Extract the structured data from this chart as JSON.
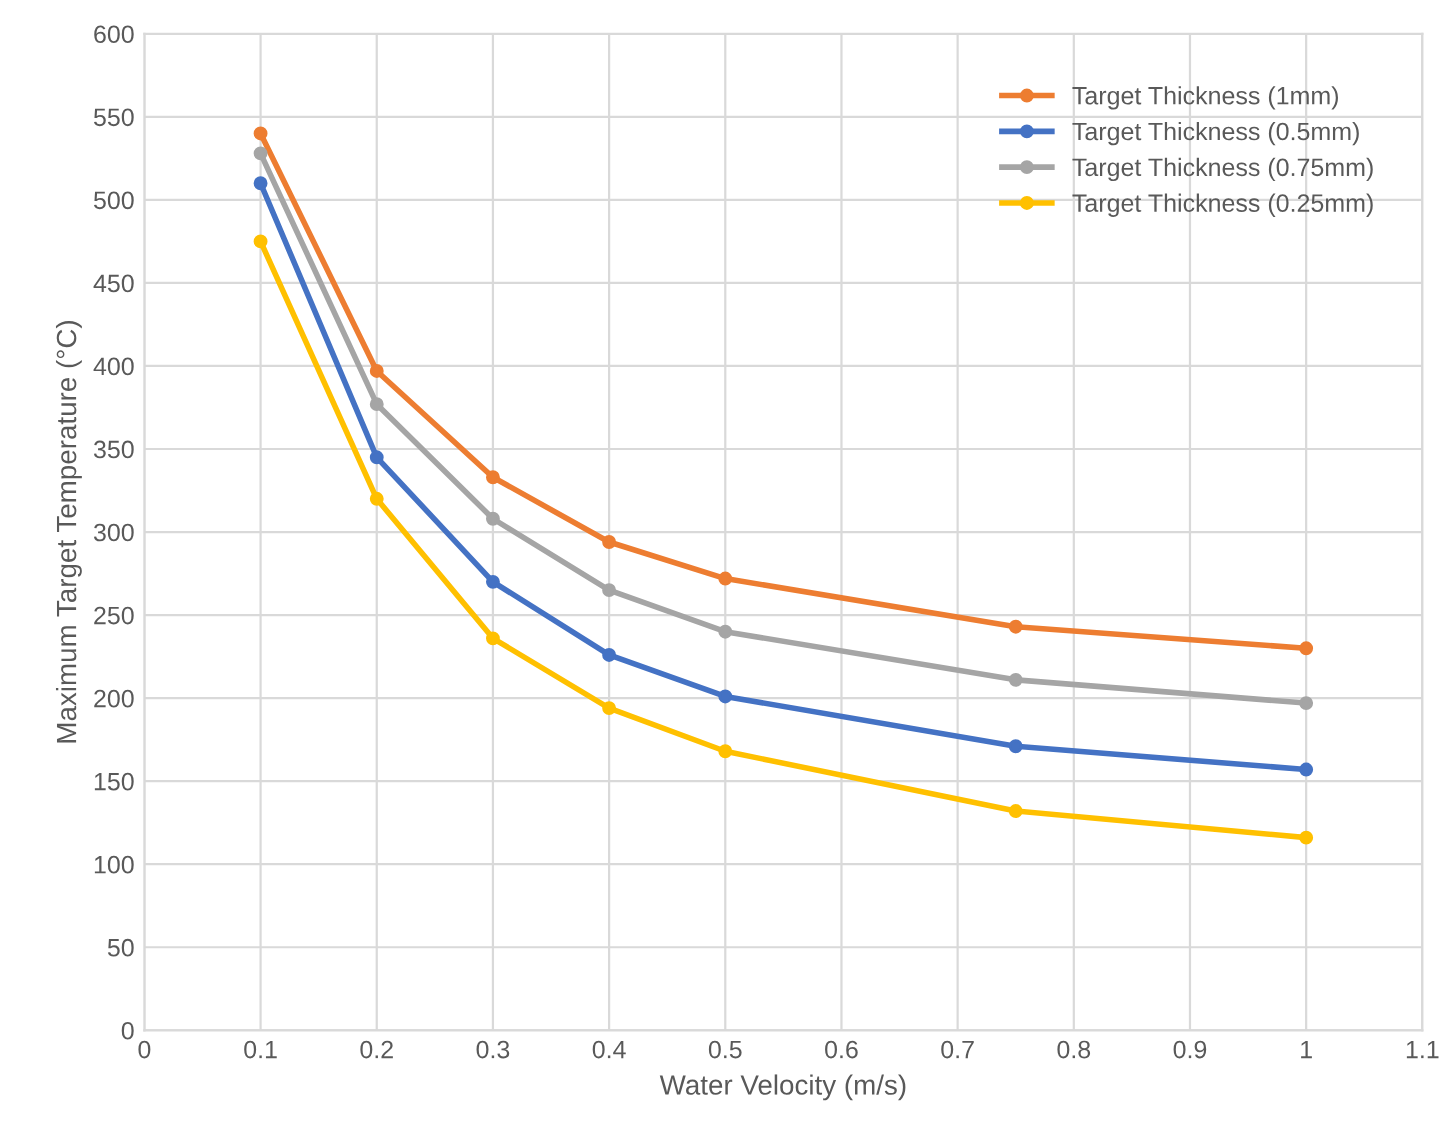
{
  "chart_data": {
    "type": "line",
    "xlabel": "Water Velocity (m/s)",
    "ylabel": "Maximum Target Temperature (°C)",
    "x": [
      0.1,
      0.2,
      0.3,
      0.4,
      0.5,
      0.75,
      1
    ],
    "series": [
      {
        "name": "Target Thickness (1mm)",
        "color": "#ed7d31",
        "values": [
          540,
          397,
          333,
          294,
          272,
          243,
          230
        ]
      },
      {
        "name": "Target Thickness (0.5mm)",
        "color": "#4472c4",
        "values": [
          510,
          345,
          270,
          226,
          201,
          171,
          157
        ]
      },
      {
        "name": "Target Thickness (0.75mm)",
        "color": "#a5a5a5",
        "values": [
          528,
          377,
          308,
          265,
          240,
          211,
          197
        ]
      },
      {
        "name": "Target Thickness (0.25mm)",
        "color": "#ffc000",
        "values": [
          475,
          320,
          236,
          194,
          168,
          132,
          116
        ]
      }
    ],
    "xlim": [
      0,
      1.1
    ],
    "xticks": [
      0,
      0.1,
      0.2,
      0.3,
      0.4,
      0.5,
      0.6,
      0.7,
      0.8,
      0.9,
      1,
      1.1
    ],
    "ylim": [
      0,
      600
    ],
    "yticks": [
      0,
      50,
      100,
      150,
      200,
      250,
      300,
      350,
      400,
      450,
      500,
      550,
      600
    ],
    "grid": true,
    "legend": "top right",
    "marker": "circle",
    "line_style": "solid"
  }
}
